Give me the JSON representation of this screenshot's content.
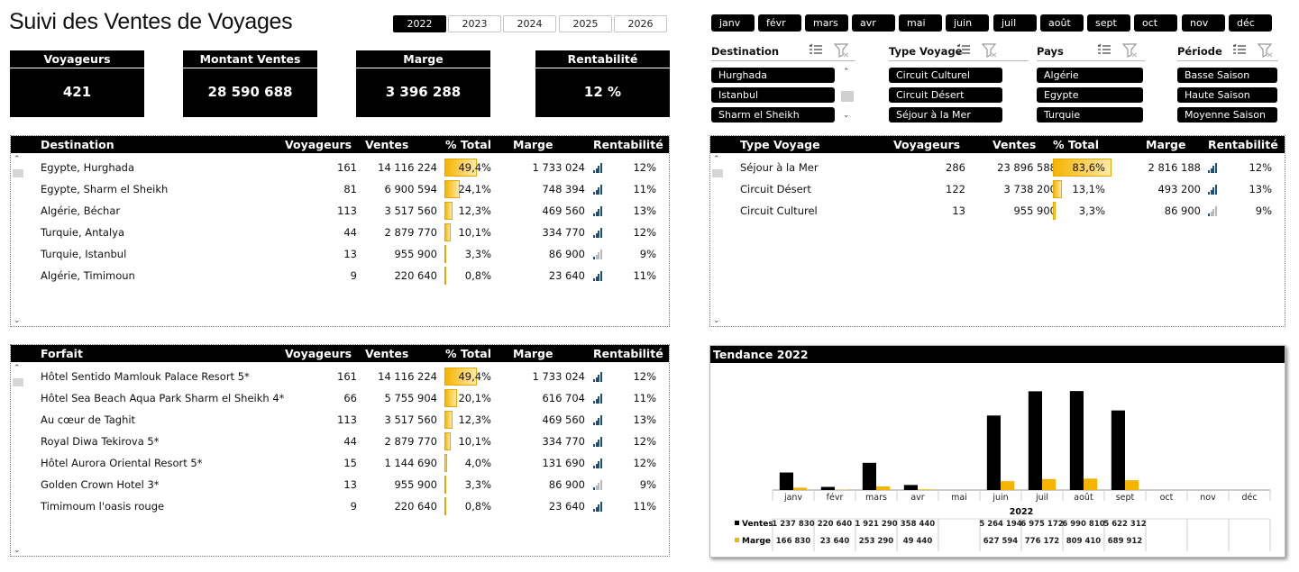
{
  "title": "Suivi des Ventes de Voyages",
  "years": [
    {
      "label": "2022",
      "selected": true
    },
    {
      "label": "2023",
      "selected": false
    },
    {
      "label": "2024",
      "selected": false
    },
    {
      "label": "2025",
      "selected": false
    },
    {
      "label": "2026",
      "selected": false
    }
  ],
  "months": [
    "janv",
    "févr",
    "mars",
    "avr",
    "mai",
    "juin",
    "juil",
    "août",
    "sept",
    "oct",
    "nov",
    "déc"
  ],
  "kpis": [
    {
      "label": "Voyageurs",
      "value": "421"
    },
    {
      "label": "Montant Ventes",
      "value": "28 590 688"
    },
    {
      "label": "Marge",
      "value": "3 396 288"
    },
    {
      "label": "Rentabilité",
      "value": "12 %"
    }
  ],
  "slicers": [
    {
      "title": "Destination",
      "items": [
        "Hurghada",
        "Istanbul",
        "Sharm el Sheikh"
      ]
    },
    {
      "title": "Type Voyage",
      "items": [
        "Circuit Culturel",
        "Circuit Désert",
        "Séjour à la Mer"
      ]
    },
    {
      "title": "Pays",
      "items": [
        "Algérie",
        "Egypte",
        "Turquie"
      ]
    },
    {
      "title": "Période",
      "items": [
        "Basse Saison",
        "Haute Saison",
        "Moyenne Saison"
      ]
    }
  ],
  "headers": [
    "Voyageurs",
    "Ventes",
    "% Total",
    "Marge",
    "Rentabilité"
  ],
  "destination_table": {
    "title": "Destination",
    "rows": [
      {
        "name": "Egypte, Hurghada",
        "voyageurs": "161",
        "ventes": "14 116 224",
        "pct": "49,4%",
        "pct_value": 49.4,
        "marge": "1 733 024",
        "rent": "12%",
        "signal": 4
      },
      {
        "name": "Egypte, Sharm el Sheikh",
        "voyageurs": "81",
        "ventes": "6 900 594",
        "pct": "24,1%",
        "pct_value": 24.1,
        "marge": "748 394",
        "rent": "11%",
        "signal": 4
      },
      {
        "name": "Algérie, Béchar",
        "voyageurs": "113",
        "ventes": "3 517 560",
        "pct": "12,3%",
        "pct_value": 12.3,
        "marge": "469 560",
        "rent": "13%",
        "signal": 4
      },
      {
        "name": "Turquie, Antalya",
        "voyageurs": "44",
        "ventes": "2 879 770",
        "pct": "10,1%",
        "pct_value": 10.1,
        "marge": "334 770",
        "rent": "12%",
        "signal": 4
      },
      {
        "name": "Turquie, Istanbul",
        "voyageurs": "13",
        "ventes": "955 900",
        "pct": "3,3%",
        "pct_value": 3.3,
        "marge": "86 900",
        "rent": "9%",
        "signal": 1
      },
      {
        "name": "Algérie, Timimoun",
        "voyageurs": "9",
        "ventes": "220 640",
        "pct": "0,8%",
        "pct_value": 0.8,
        "marge": "23 640",
        "rent": "11%",
        "signal": 4
      }
    ]
  },
  "type_table": {
    "title": "Type Voyage",
    "rows": [
      {
        "name": "Séjour à la Mer",
        "voyageurs": "286",
        "ventes": "23 896 588",
        "pct": "83,6%",
        "pct_value": 83.6,
        "marge": "2 816 188",
        "rent": "12%",
        "signal": 4
      },
      {
        "name": "Circuit Désert",
        "voyageurs": "122",
        "ventes": "3 738 200",
        "pct": "13,1%",
        "pct_value": 13.1,
        "marge": "493 200",
        "rent": "13%",
        "signal": 4
      },
      {
        "name": "Circuit Culturel",
        "voyageurs": "13",
        "ventes": "955 900",
        "pct": "3,3%",
        "pct_value": 3.3,
        "marge": "86 900",
        "rent": "9%",
        "signal": 1
      }
    ]
  },
  "forfait_table": {
    "title": "Forfait",
    "rows": [
      {
        "name": "Hôtel Sentido Mamlouk Palace Resort 5*",
        "voyageurs": "161",
        "ventes": "14 116 224",
        "pct": "49,4%",
        "pct_value": 49.4,
        "marge": "1 733 024",
        "rent": "12%",
        "signal": 4
      },
      {
        "name": "Hôtel Sea Beach Aqua Park Sharm el Sheikh 4*",
        "voyageurs": "66",
        "ventes": "5 755 904",
        "pct": "20,1%",
        "pct_value": 20.1,
        "marge": "616 704",
        "rent": "11%",
        "signal": 4
      },
      {
        "name": "Au cœur de Taghit",
        "voyageurs": "113",
        "ventes": "3 517 560",
        "pct": "12,3%",
        "pct_value": 12.3,
        "marge": "469 560",
        "rent": "13%",
        "signal": 4
      },
      {
        "name": "Royal Diwa Tekirova 5*",
        "voyageurs": "44",
        "ventes": "2 879 770",
        "pct": "10,1%",
        "pct_value": 10.1,
        "marge": "334 770",
        "rent": "12%",
        "signal": 4
      },
      {
        "name": "Hôtel Aurora Oriental Resort 5*",
        "voyageurs": "15",
        "ventes": "1 144 690",
        "pct": "4,0%",
        "pct_value": 4.0,
        "marge": "131 690",
        "rent": "12%",
        "signal": 4
      },
      {
        "name": "Golden Crown Hotel 3*",
        "voyageurs": "13",
        "ventes": "955 900",
        "pct": "3,3%",
        "pct_value": 3.3,
        "marge": "86 900",
        "rent": "9%",
        "signal": 1
      },
      {
        "name": "Timimoum l'oasis rouge",
        "voyageurs": "9",
        "ventes": "220 640",
        "pct": "0,8%",
        "pct_value": 0.8,
        "marge": "23 640",
        "rent": "11%",
        "signal": 4
      }
    ]
  },
  "colors": {
    "ventes": "#000000",
    "marge": "#f4b400",
    "signal_on": "#1e4f7a",
    "signal_off": "#b8b8b8"
  },
  "chart_data": {
    "type": "bar",
    "title": "Tendance 2022",
    "xlabel": "2022",
    "categories": [
      "janv",
      "févr",
      "mars",
      "avr",
      "mai",
      "juin",
      "juil",
      "août",
      "sept",
      "oct",
      "nov",
      "déc"
    ],
    "series": [
      {
        "name": "Ventes",
        "color": "#000000",
        "values": [
          1237830,
          220640,
          1921290,
          358440,
          null,
          5264194,
          6975172,
          6990810,
          5622312,
          null,
          null,
          null
        ],
        "labels": [
          "1 237 830",
          "220 640",
          "1 921 290",
          "358 440",
          "",
          "5 264 194",
          "6 975 172",
          "6 990 810",
          "5 622 312",
          "",
          "",
          ""
        ]
      },
      {
        "name": "Marge",
        "color": "#f4b400",
        "values": [
          166830,
          23640,
          253290,
          49440,
          null,
          627594,
          776172,
          809410,
          689912,
          null,
          null,
          null
        ],
        "labels": [
          "166 830",
          "23 640",
          "253 290",
          "49 440",
          "",
          "627 594",
          "776 172",
          "809 410",
          "689 912",
          "",
          "",
          ""
        ]
      }
    ],
    "ylim": [
      0,
      7000000
    ],
    "grid": false,
    "legend": "bottom-left data table"
  }
}
